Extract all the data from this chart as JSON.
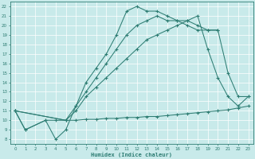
{
  "xlabel": "Humidex (Indice chaleur)",
  "bg_color": "#c8eaea",
  "grid_color": "#ffffff",
  "line_color": "#2e7d73",
  "xlim": [
    -0.5,
    23.5
  ],
  "ylim": [
    7.5,
    22.5
  ],
  "xtick_labels": [
    "0",
    "1",
    "2",
    "3",
    "4",
    "5",
    "6",
    "7",
    "8",
    "9",
    "10",
    "11",
    "12",
    "13",
    "14",
    "15",
    "16",
    "17",
    "18",
    "19",
    "20",
    "21",
    "2223"
  ],
  "ytick_labels": [
    "8",
    "9",
    "10",
    "11",
    "12",
    "13",
    "14",
    "15",
    "16",
    "17",
    "18",
    "19",
    "20",
    "21",
    "22"
  ],
  "line1_x": [
    0,
    1,
    3,
    4,
    5,
    6,
    7,
    8,
    9,
    10,
    11,
    12,
    13,
    14,
    15,
    16,
    17,
    18,
    19,
    20,
    21,
    22,
    23
  ],
  "line1_y": [
    11,
    9,
    10,
    10,
    10,
    10,
    10.1,
    10.1,
    10.2,
    10.2,
    10.3,
    10.3,
    10.4,
    10.4,
    10.5,
    10.6,
    10.7,
    10.8,
    10.9,
    11.0,
    11.1,
    11.3,
    11.5
  ],
  "line2_x": [
    0,
    5,
    6,
    7,
    8,
    9,
    10,
    11,
    12,
    13,
    14,
    15,
    16,
    17,
    18,
    19,
    20,
    21,
    22,
    23
  ],
  "line2_y": [
    11,
    10,
    11,
    12.5,
    13.5,
    14.5,
    15.5,
    16.5,
    17.5,
    18.5,
    19,
    19.5,
    20,
    20.5,
    21,
    17.5,
    14.5,
    12.5,
    11.5,
    12.5
  ],
  "line3_x": [
    0,
    1,
    3,
    4,
    5,
    6,
    7,
    8,
    9,
    10,
    11,
    12,
    13,
    14,
    15,
    16,
    17,
    18,
    19,
    20
  ],
  "line3_y": [
    11,
    9,
    10,
    8,
    9,
    11.5,
    14,
    15.5,
    17,
    19,
    21.5,
    22,
    21.5,
    21.5,
    21,
    20.5,
    20,
    19.5,
    19.5,
    19.5
  ],
  "line4_x": [
    0,
    5,
    6,
    7,
    8,
    9,
    10,
    11,
    12,
    13,
    14,
    15,
    16,
    17,
    18,
    19,
    20,
    21,
    22,
    23
  ],
  "line4_y": [
    11,
    10,
    11.5,
    13,
    14.5,
    16,
    17.5,
    19,
    20,
    20.5,
    21,
    20.5,
    20.5,
    20.5,
    20,
    19.5,
    19.5,
    15,
    12.5,
    12.5
  ]
}
